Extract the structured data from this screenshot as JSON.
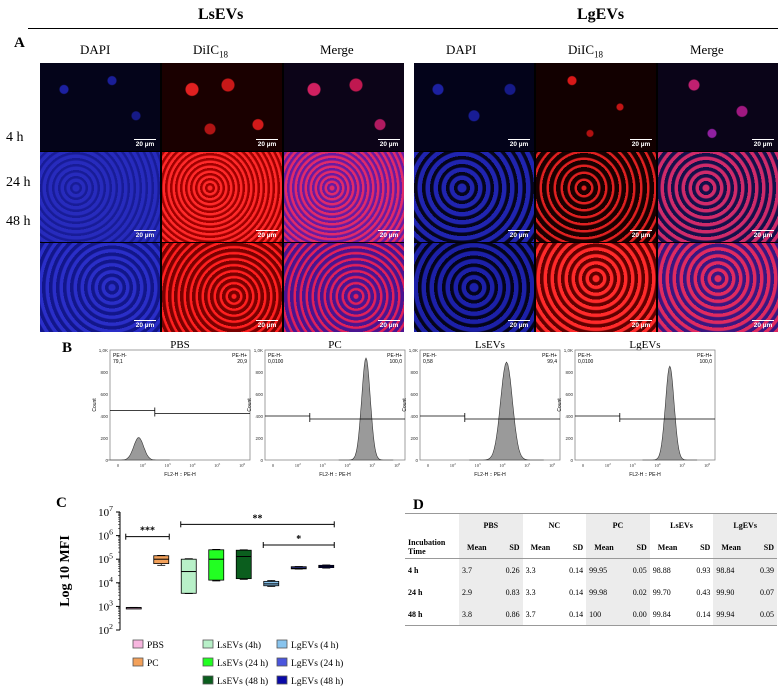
{
  "figure": {
    "groups": [
      "LsEVs",
      "LgEVs"
    ],
    "panel_a": {
      "letter": "A",
      "col_labels": [
        "DAPI",
        "DiIC",
        "Merge"
      ],
      "dil_subscript": "18",
      "row_labels": [
        "4 h",
        "24 h",
        "48 h"
      ],
      "scale_bar": "20 µm"
    },
    "panel_b": {
      "letter": "B",
      "histograms": [
        {
          "title": "PBS",
          "neg_label": "PE-H-",
          "neg_value": "79,1",
          "pos_label": "PE-H+",
          "pos_value": "20,9",
          "peak_log": 1.0,
          "width": 0.25,
          "height": 0.22
        },
        {
          "title": "PC",
          "neg_label": "PE-H-",
          "neg_value": "0,0100",
          "pos_label": "PE-H+",
          "pos_value": "100,0",
          "peak_log": 4.5,
          "width": 0.22,
          "height": 1.0
        },
        {
          "title": "LsEVs",
          "neg_label": "PE-H-",
          "neg_value": "0,58",
          "pos_label": "PE-H+",
          "pos_value": "99,4",
          "peak_log": 3.8,
          "width": 0.3,
          "height": 0.96
        },
        {
          "title": "LgEVs",
          "neg_label": "PE-H-",
          "neg_value": "0,0100",
          "pos_label": "PE-H+",
          "pos_value": "100,0",
          "peak_log": 4.2,
          "width": 0.22,
          "height": 0.92
        }
      ],
      "y_axis_label": "Count",
      "x_axis_label": "FL2-H :: PE-H",
      "y_ticks": [
        "0",
        "200",
        "400",
        "600",
        "800",
        "1,0K"
      ],
      "x_ticks": [
        "0",
        "10^2",
        "10^3",
        "10^4",
        "10^5",
        "10^6"
      ]
    },
    "panel_c": {
      "letter": "C",
      "y_axis_label": "Log 10 MFI",
      "y_tick_labels": [
        "10^2",
        "10^3",
        "10^4",
        "10^5",
        "10^6",
        "10^7"
      ],
      "significance": [
        "***",
        "**",
        "*"
      ],
      "legend": [
        {
          "label": "PBS",
          "color": "#f7b6df"
        },
        {
          "label": "PC",
          "color": "#f3a15a"
        },
        {
          "label": "LsEVs (4h)",
          "color": "#b8f0c8"
        },
        {
          "label": "LsEVs (24 h)",
          "color": "#22ff22"
        },
        {
          "label": "LsEVs (48 h)",
          "color": "#0b5e1e"
        },
        {
          "label": "LgEVs (4 h)",
          "color": "#88c4ee"
        },
        {
          "label": "LgEVs (24 h)",
          "color": "#4a55dd"
        },
        {
          "label": "LgEVs (48 h)",
          "color": "#0a0aa8"
        }
      ]
    },
    "panel_d": {
      "letter": "D",
      "groups": [
        "PBS",
        "NC",
        "PC",
        "LsEVs",
        "LgEVs"
      ],
      "row_header": "Incubation Time",
      "mean_label": "Mean",
      "sd_label": "SD",
      "rows": [
        {
          "time": "4 h",
          "values": [
            "3.7",
            "0.26",
            "3.3",
            "0.14",
            "99.95",
            "0.05",
            "98.88",
            "0.93",
            "98.84",
            "0.39"
          ]
        },
        {
          "time": "24 h",
          "values": [
            "2.9",
            "0.83",
            "3.3",
            "0.14",
            "99.98",
            "0.02",
            "99.70",
            "0.43",
            "99.90",
            "0.07"
          ]
        },
        {
          "time": "48 h",
          "values": [
            "3.8",
            "0.86",
            "3.7",
            "0.14",
            "100",
            "0.00",
            "99.84",
            "0.14",
            "99.94",
            "0.05"
          ]
        }
      ]
    }
  },
  "chart_data": {
    "type": "box",
    "ylabel": "Log 10 MFI",
    "y_scale": "log",
    "ylim": [
      100,
      10000000
    ],
    "series": [
      {
        "name": "PBS",
        "min": 850,
        "q1": 860,
        "median": 880,
        "q3": 900,
        "max": 910
      },
      {
        "name": "PC",
        "min": 55000,
        "q1": 65000,
        "median": 100000,
        "q3": 140000,
        "max": 145000
      },
      {
        "name": "LsEVs (4h)",
        "min": 3500,
        "q1": 3600,
        "median": 30000,
        "q3": 100000,
        "max": 105000
      },
      {
        "name": "LsEVs (24 h)",
        "min": 12000,
        "q1": 13000,
        "median": 100000,
        "q3": 250000,
        "max": 260000
      },
      {
        "name": "LsEVs (48 h)",
        "min": 14000,
        "q1": 15000,
        "median": 130000,
        "q3": 240000,
        "max": 250000
      },
      {
        "name": "LgEVs (4 h)",
        "min": 7000,
        "q1": 7500,
        "median": 9000,
        "q3": 11500,
        "max": 12500
      },
      {
        "name": "LgEVs (24 h)",
        "min": 38000,
        "q1": 39000,
        "median": 42000,
        "q3": 48000,
        "max": 49000
      },
      {
        "name": "LgEVs (48 h)",
        "min": 42000,
        "q1": 44000,
        "median": 50000,
        "q3": 55000,
        "max": 57000
      }
    ],
    "significance_labels": [
      "***",
      "**",
      "*"
    ]
  }
}
